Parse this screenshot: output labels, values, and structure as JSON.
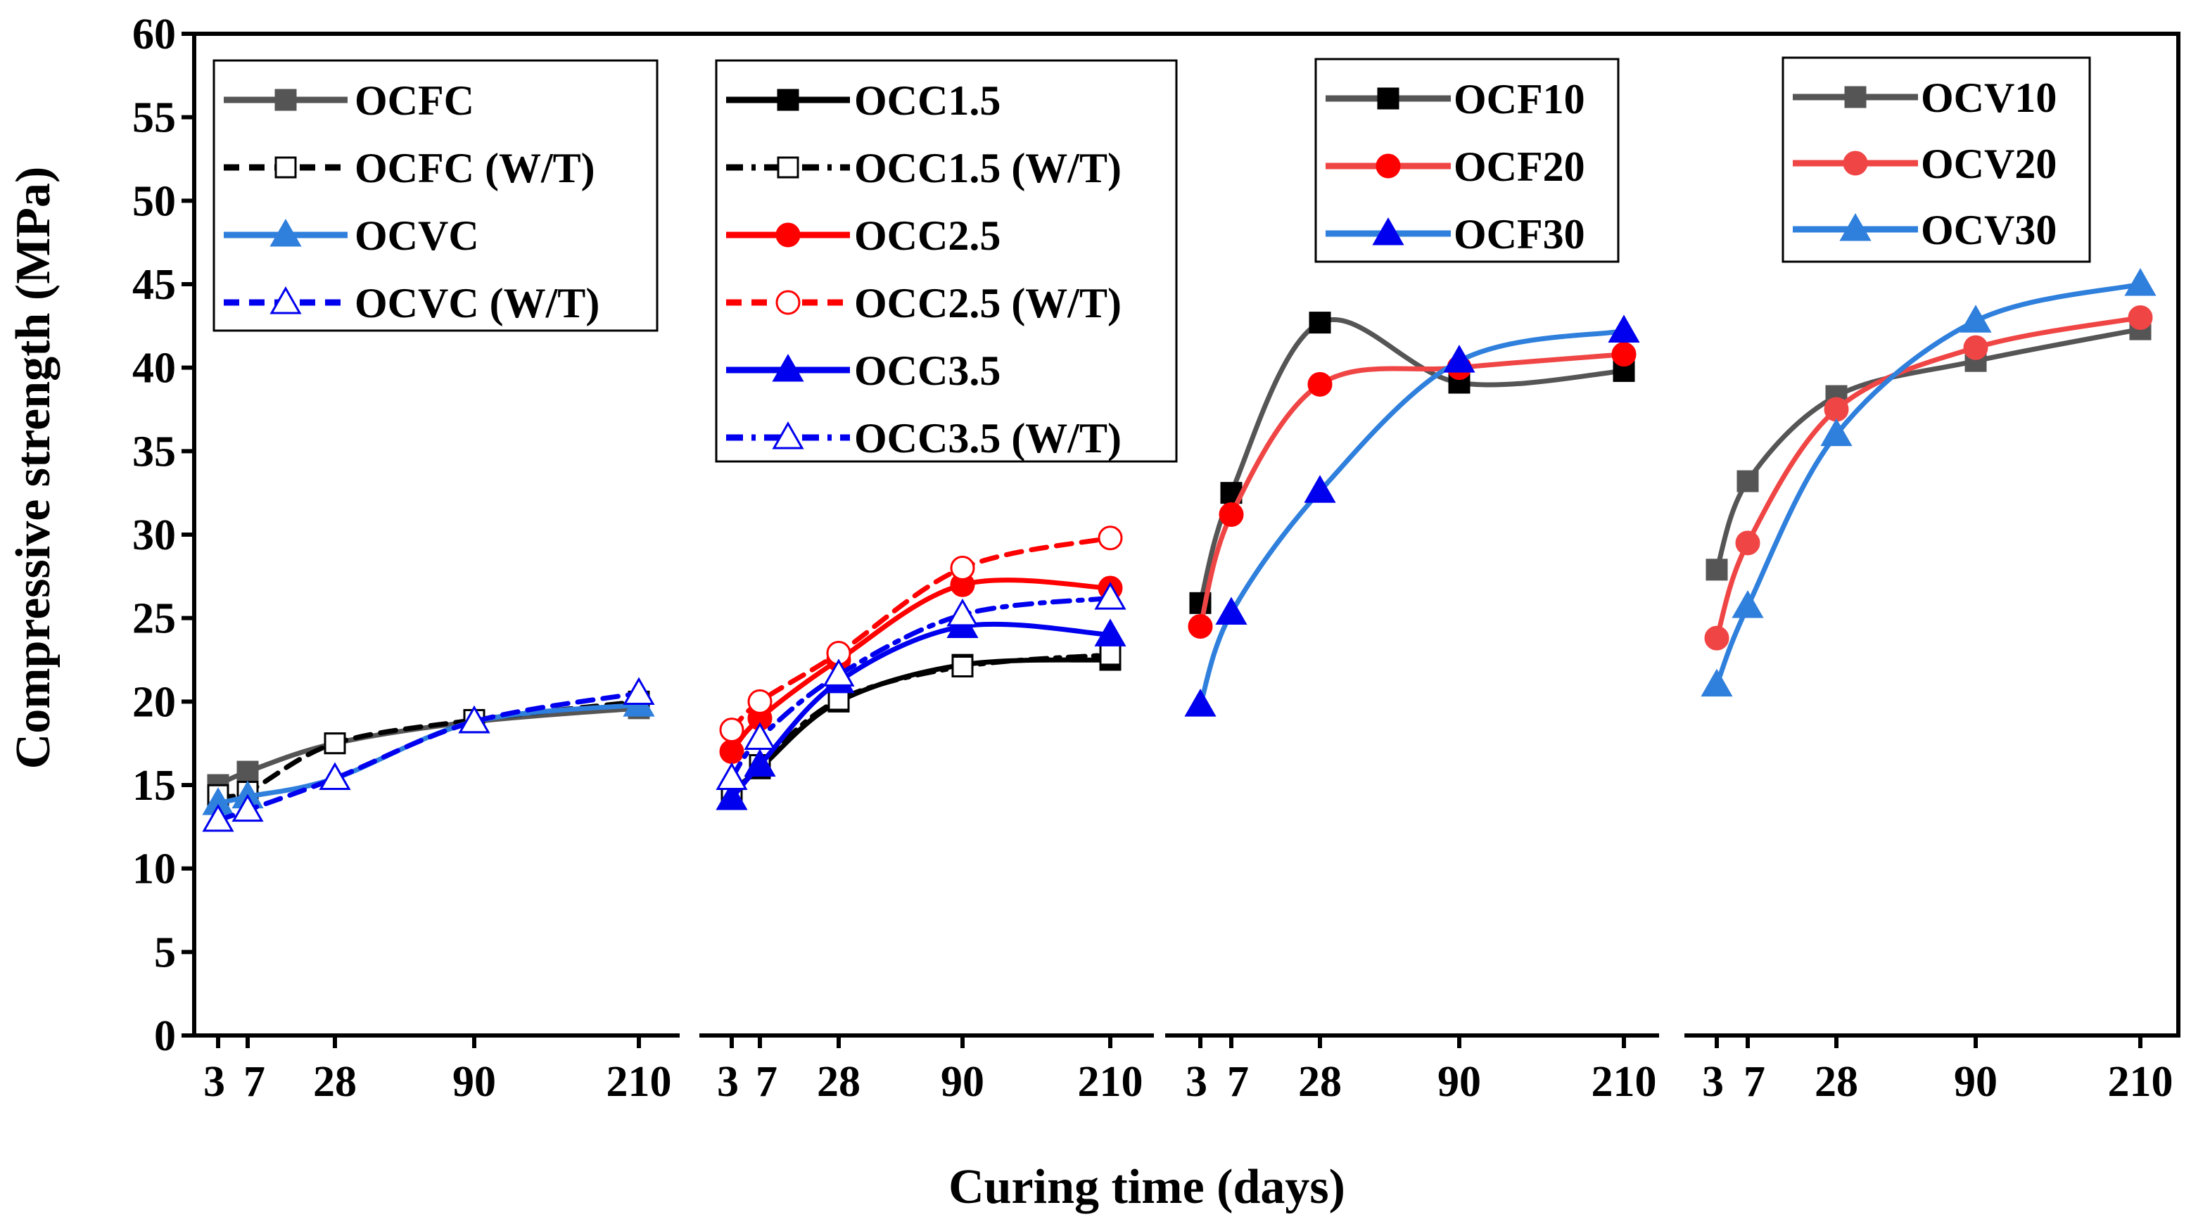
{
  "chart_data": {
    "type": "line",
    "xlabel": "Curing time (days)",
    "ylabel": "Compressive strength (MPa)",
    "ylim": [
      0,
      60
    ],
    "yticks": [
      0,
      5,
      10,
      15,
      20,
      25,
      30,
      35,
      40,
      45,
      50,
      55,
      60
    ],
    "grid": false,
    "x_categories": [
      "3",
      "7",
      "28",
      "90",
      "210"
    ],
    "panels": [
      {
        "name": "panel-1",
        "legend_position": "top-left",
        "series": [
          {
            "name": "OCFC",
            "color": "#555555",
            "marker": "square",
            "filled": true,
            "dash": "solid",
            "values": [
              15.0,
              15.8,
              17.5,
              18.8,
              19.6
            ]
          },
          {
            "name": "OCFC (W/T)",
            "color": "#000000",
            "marker": "square",
            "filled": false,
            "dash": "dash",
            "values": [
              14.4,
              14.6,
              17.5,
              18.9,
              20.0
            ]
          },
          {
            "name": "OCVC",
            "color": "#2f7fdc",
            "marker": "triangle",
            "filled": true,
            "dash": "solid",
            "values": [
              13.9,
              14.3,
              15.4,
              18.8,
              19.8
            ]
          },
          {
            "name": "OCVC (W/T)",
            "color": "#0000ee",
            "marker": "triangle",
            "filled": false,
            "dash": "dash",
            "values": [
              12.9,
              13.5,
              15.4,
              18.8,
              20.5
            ]
          }
        ]
      },
      {
        "name": "panel-2",
        "legend_position": "top-left",
        "series": [
          {
            "name": "OCC1.5",
            "color": "#000000",
            "marker": "square",
            "filled": true,
            "dash": "solid",
            "values": [
              14.6,
              16.0,
              20.0,
              22.2,
              22.5
            ]
          },
          {
            "name": "OCC1.5 (W/T)",
            "color": "#000000",
            "marker": "square",
            "filled": false,
            "dash": "dashdot",
            "values": [
              14.3,
              16.2,
              20.1,
              22.1,
              22.8
            ]
          },
          {
            "name": "OCC2.5",
            "color": "#ff0000",
            "marker": "circle",
            "filled": true,
            "dash": "solid",
            "values": [
              17.0,
              19.0,
              22.5,
              27.0,
              26.8
            ]
          },
          {
            "name": "OCC2.5 (W/T)",
            "color": "#ff0000",
            "marker": "circle",
            "filled": false,
            "dash": "dash",
            "values": [
              18.3,
              20.0,
              22.9,
              28.0,
              29.8
            ]
          },
          {
            "name": "OCC3.5",
            "color": "#0000ee",
            "marker": "triangle",
            "filled": true,
            "dash": "solid",
            "values": [
              14.2,
              16.2,
              21.2,
              24.5,
              24.0
            ]
          },
          {
            "name": "OCC3.5 (W/T)",
            "color": "#0000ee",
            "marker": "triangle",
            "filled": false,
            "dash": "dashdot",
            "values": [
              15.4,
              17.8,
              21.6,
              25.2,
              26.2
            ]
          }
        ]
      },
      {
        "name": "panel-3",
        "legend_position": "top",
        "series": [
          {
            "name": "OCF10",
            "color": "#555555",
            "marker": "square",
            "filled": true,
            "dash": "solid",
            "markerColor": "#000000",
            "values": [
              25.9,
              32.5,
              42.7,
              39.1,
              39.8
            ]
          },
          {
            "name": "OCF20",
            "color": "#f04545",
            "marker": "circle",
            "filled": true,
            "dash": "solid",
            "markerColor": "#ff0000",
            "values": [
              24.5,
              31.2,
              39.0,
              40.0,
              40.8
            ]
          },
          {
            "name": "OCF30",
            "color": "#2f7fdc",
            "marker": "triangle",
            "filled": true,
            "dash": "solid",
            "markerColor": "#0000ee",
            "values": [
              19.8,
              25.3,
              32.6,
              40.4,
              42.2
            ]
          }
        ]
      },
      {
        "name": "panel-4",
        "legend_position": "top-right",
        "series": [
          {
            "name": "OCV10",
            "color": "#555555",
            "marker": "square",
            "filled": true,
            "dash": "solid",
            "values": [
              27.9,
              33.2,
              38.3,
              40.4,
              42.3
            ]
          },
          {
            "name": "OCV20",
            "color": "#f04545",
            "marker": "circle",
            "filled": true,
            "dash": "solid",
            "values": [
              23.8,
              29.5,
              37.5,
              41.2,
              43.0
            ]
          },
          {
            "name": "OCV30",
            "color": "#2f7fdc",
            "marker": "triangle",
            "filled": true,
            "dash": "solid",
            "values": [
              21.0,
              25.7,
              36.0,
              42.8,
              45.0
            ]
          }
        ]
      }
    ]
  }
}
